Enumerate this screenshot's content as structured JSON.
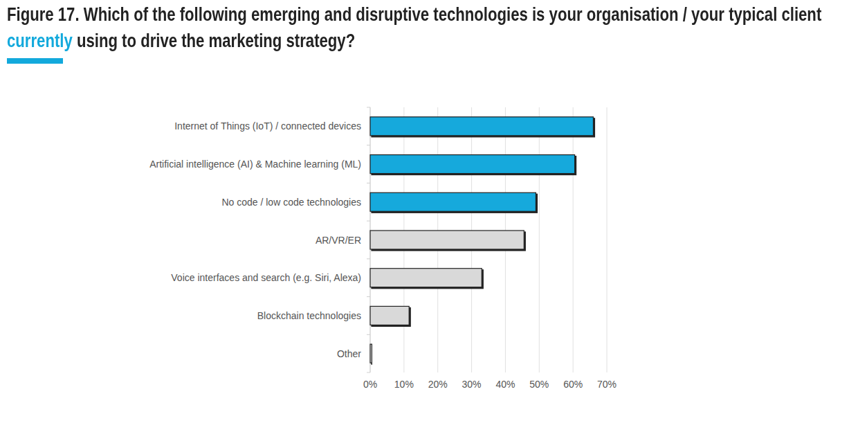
{
  "chart_data": {
    "type": "bar",
    "orientation": "horizontal",
    "title": [
      "Figure 17. Which of the following emerging and disruptive technologies is your organisation / your typical client ",
      "currently",
      " using to drive the marketing strategy?"
    ],
    "categories": [
      "Internet of Things (IoT) / connected devices",
      "Artificial intelligence (AI) & Machine learning (ML)",
      "No code / low code technologies",
      "AR/VR/ER",
      "Voice interfaces and search (e.g. Siri, Alexa)",
      "Blockchain technologies",
      "Other"
    ],
    "values": [
      66,
      60.5,
      49,
      45.5,
      33,
      11.5,
      0.5
    ],
    "colors": [
      "#12a9dc",
      "#12a9dc",
      "#12a9dc",
      "#d9d9d9",
      "#d9d9d9",
      "#d9d9d9",
      "#d9d9d9"
    ],
    "xlim": [
      0,
      70
    ],
    "xticks": [
      {
        "value": 0,
        "label": "0%"
      },
      {
        "value": 10,
        "label": "10%"
      },
      {
        "value": 20,
        "label": "20%"
      },
      {
        "value": 30,
        "label": "30%"
      },
      {
        "value": 40,
        "label": "40%"
      },
      {
        "value": 50,
        "label": "50%"
      },
      {
        "value": 60,
        "label": "60%"
      },
      {
        "value": 70,
        "label": "70%"
      }
    ],
    "grid": true
  }
}
